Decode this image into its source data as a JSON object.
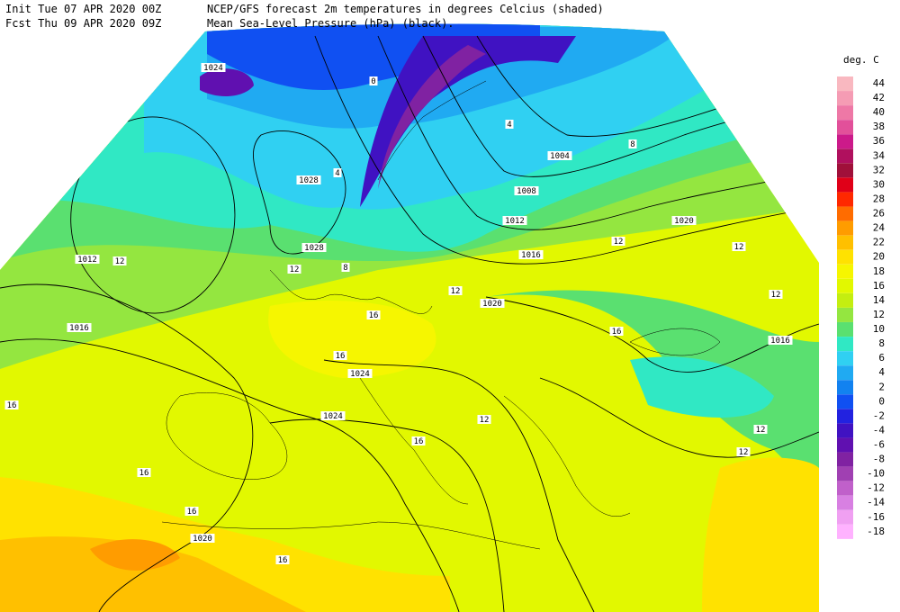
{
  "header": {
    "init": "Init  Tue 07 APR 2020 00Z",
    "fcst": "Fcst Thu 09 APR 2020 09Z",
    "title1": "NCEP/GFS forecast 2m temperatures in degrees Celcius (shaded)",
    "title2": "Mean Sea-Level Pressure (hPa) (black)."
  },
  "legend": {
    "title": "deg. C",
    "levels": [
      {
        "value": 44,
        "color": "#f9b8c0"
      },
      {
        "value": 42,
        "color": "#f59cb4"
      },
      {
        "value": 40,
        "color": "#ee78a6"
      },
      {
        "value": 38,
        "color": "#e2509a"
      },
      {
        "value": 36,
        "color": "#cc1a8a"
      },
      {
        "value": 34,
        "color": "#b0105e"
      },
      {
        "value": 32,
        "color": "#a0103a"
      },
      {
        "value": 30,
        "color": "#e00018"
      },
      {
        "value": 28,
        "color": "#ff2800"
      },
      {
        "value": 26,
        "color": "#ff6c00"
      },
      {
        "value": 24,
        "color": "#ff9c00"
      },
      {
        "value": 22,
        "color": "#ffc000"
      },
      {
        "value": 20,
        "color": "#ffe200"
      },
      {
        "value": 18,
        "color": "#f6f600"
      },
      {
        "value": 16,
        "color": "#e2f800"
      },
      {
        "value": 14,
        "color": "#c4ee10"
      },
      {
        "value": 12,
        "color": "#94e640"
      },
      {
        "value": 10,
        "color": "#5ae070"
      },
      {
        "value": 8,
        "color": "#30e8c4"
      },
      {
        "value": 6,
        "color": "#30d0f2"
      },
      {
        "value": 4,
        "color": "#20aaf2"
      },
      {
        "value": 2,
        "color": "#1282f0"
      },
      {
        "value": 0,
        "color": "#1050f2"
      },
      {
        "value": -2,
        "color": "#2222e0"
      },
      {
        "value": -4,
        "color": "#4012c2"
      },
      {
        "value": -6,
        "color": "#6010b0"
      },
      {
        "value": -8,
        "color": "#8022a2"
      },
      {
        "value": -10,
        "color": "#a040b2"
      },
      {
        "value": -12,
        "color": "#c060ca"
      },
      {
        "value": -14,
        "color": "#d880e2"
      },
      {
        "value": -16,
        "color": "#f0a0f2"
      },
      {
        "value": -18,
        "color": "#ffb2ff"
      }
    ]
  },
  "isobar_labels": [
    1024,
    1028,
    1028,
    1012,
    1016,
    1024,
    1024,
    1020,
    1020,
    1016,
    1012,
    1008,
    1004,
    1020,
    1016
  ],
  "temperature_labels": [
    12,
    12,
    8,
    16,
    16,
    16,
    16,
    16,
    16,
    16,
    12,
    12,
    12,
    12,
    12,
    12,
    4,
    4,
    8,
    0,
    16,
    12
  ]
}
